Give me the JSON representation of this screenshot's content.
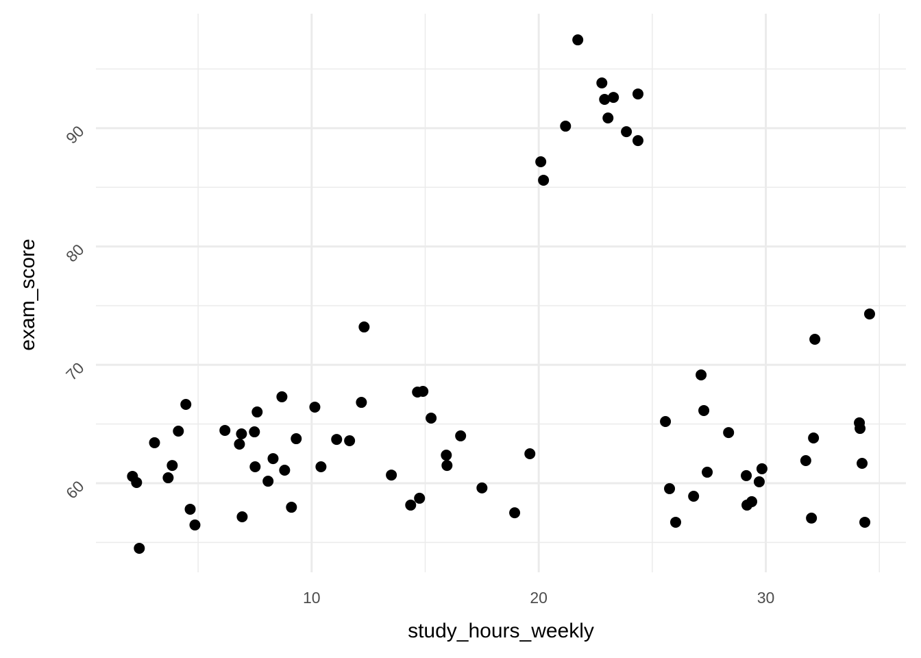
{
  "chart_data": {
    "type": "scatter",
    "x_label": "study_hours_weekly",
    "y_label": "exam_score",
    "color": "#000000",
    "grid": true,
    "xlim": [
      0.5,
      36.17
    ],
    "ylim": [
      52.47,
      99.67
    ],
    "xticks": [
      10,
      20,
      30
    ],
    "yticks": [
      60,
      70,
      80,
      90
    ],
    "xminor": [
      5,
      15,
      25,
      35
    ],
    "yminor": [
      55,
      65,
      75,
      85,
      95
    ],
    "x": [
      2.11,
      2.29,
      2.41,
      3.08,
      3.68,
      3.86,
      4.13,
      4.46,
      4.65,
      4.86,
      6.18,
      6.82,
      6.91,
      6.94,
      7.48,
      7.51,
      7.6,
      8.08,
      8.3,
      8.69,
      8.81,
      9.11,
      9.32,
      10.14,
      10.41,
      11.1,
      11.67,
      12.19,
      12.31,
      13.51,
      14.36,
      14.66,
      14.75,
      14.9,
      15.26,
      15.93,
      15.96,
      16.56,
      17.5,
      18.94,
      19.61,
      20.09,
      20.21,
      21.18,
      21.72,
      22.78,
      22.9,
      23.05,
      23.29,
      23.86,
      24.37,
      24.37,
      25.58,
      25.76,
      26.03,
      26.82,
      27.15,
      27.27,
      27.42,
      28.36,
      29.14,
      29.17,
      29.38,
      29.71,
      29.83,
      31.76,
      32.01,
      32.1,
      32.16,
      34.12,
      34.15,
      34.24,
      34.36,
      34.57
    ],
    "values": [
      60.58,
      60.06,
      54.5,
      63.42,
      60.46,
      61.5,
      64.4,
      66.66,
      57.8,
      56.47,
      64.46,
      63.3,
      64.17,
      57.16,
      64.34,
      61.39,
      66.02,
      60.17,
      62.08,
      67.3,
      61.1,
      57.97,
      63.76,
      66.43,
      61.39,
      63.7,
      63.59,
      66.83,
      73.2,
      60.69,
      58.15,
      67.7,
      58.73,
      67.76,
      65.5,
      62.37,
      61.5,
      64.0,
      59.6,
      57.5,
      62.49,
      87.16,
      85.6,
      90.17,
      97.46,
      93.82,
      92.43,
      90.86,
      92.6,
      89.7,
      92.89,
      88.95,
      65.21,
      59.54,
      56.7,
      58.9,
      69.15,
      66.14,
      60.93,
      64.28,
      60.64,
      58.15,
      58.44,
      60.12,
      61.22,
      61.91,
      57.05,
      63.82,
      72.16,
      65.1,
      64.63,
      61.68,
      56.7,
      74.3
    ]
  }
}
